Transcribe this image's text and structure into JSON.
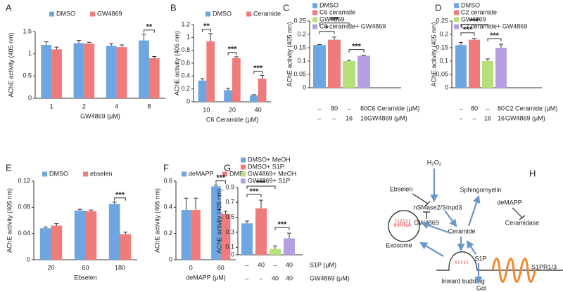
{
  "chart_data": [
    {
      "panel": "A",
      "type": "bar",
      "ylabel": "AChE activity (405 nm)",
      "xlabel": "GW4869 (μM)",
      "categories": [
        "1",
        "2",
        "4",
        "8"
      ],
      "series": [
        {
          "name": "DMSO",
          "color": "#6ea6e2",
          "values": [
            1.2,
            1.24,
            1.18,
            1.3
          ],
          "errors": [
            0.07,
            0.06,
            0.05,
            0.14
          ]
        },
        {
          "name": "GW4869",
          "color": "#f07b7b",
          "values": [
            1.1,
            1.23,
            1.15,
            0.9
          ],
          "errors": [
            0.05,
            0.03,
            0.05,
            0.04
          ]
        }
      ],
      "ylim": [
        0,
        1.5
      ],
      "yticks": [
        0,
        0.5,
        1,
        1.5
      ],
      "annotations": [
        "**"
      ]
    },
    {
      "panel": "B",
      "type": "bar",
      "ylabel": "AChE activity (405 nm)",
      "xlabel": "C6 Ceramide (μM)",
      "categories": [
        "10",
        "20",
        "40"
      ],
      "series": [
        {
          "name": "DMSO",
          "color": "#6ea6e2",
          "values": [
            0.33,
            0.18,
            0.1
          ],
          "errors": [
            0.03,
            0.03,
            0.01
          ]
        },
        {
          "name": "Ceramide",
          "color": "#f07b7b",
          "values": [
            0.94,
            0.68,
            0.36
          ],
          "errors": [
            0.12,
            0.02,
            0.05
          ]
        }
      ],
      "ylim": [
        0,
        1.2
      ],
      "yticks": [
        0,
        0.2,
        0.4,
        0.6,
        0.8,
        1,
        1.2
      ],
      "annotations": [
        "**",
        "***",
        "***"
      ]
    },
    {
      "panel": "C",
      "type": "bar_group",
      "ylabel": "AChE activity (405 nm)",
      "series": [
        {
          "name": "DMSO",
          "color": "#6ea6e2",
          "values": [
            0.16
          ],
          "errors": [
            0.002
          ]
        },
        {
          "name": "C6 ceramide",
          "color": "#f07b7b",
          "values": [
            0.18
          ],
          "errors": [
            0.01
          ]
        },
        {
          "name": "GW4869",
          "color": "#b8e07a",
          "values": [
            0.1
          ],
          "errors": [
            0.003
          ]
        },
        {
          "name": "C6 ceramide+ GW4869",
          "color": "#b7a0e2",
          "values": [
            0.12
          ],
          "errors": [
            0.002
          ]
        }
      ],
      "rows": [
        {
          "label": "C6 Ceramide (μM)",
          "values": [
            "–",
            "80",
            "–",
            "80"
          ]
        },
        {
          "label": "GW4869 (μM)",
          "values": [
            "–",
            "–",
            "16",
            "16"
          ]
        }
      ],
      "ylim": [
        0,
        0.25
      ],
      "yticks": [
        0,
        0.05,
        0.1,
        0.15,
        0.2,
        0.25
      ],
      "annotations": [
        "*",
        "***",
        "***"
      ]
    },
    {
      "panel": "D",
      "type": "bar_group",
      "ylabel": "AChE activity (405 nm)",
      "series": [
        {
          "name": "DMSO",
          "color": "#6ea6e2",
          "values": [
            0.16
          ],
          "errors": [
            0.01
          ]
        },
        {
          "name": "C2 ceramide",
          "color": "#f07b7b",
          "values": [
            0.18
          ],
          "errors": [
            0.005
          ]
        },
        {
          "name": "GW4869",
          "color": "#b8e07a",
          "values": [
            0.1
          ],
          "errors": [
            0.008
          ]
        },
        {
          "name": "C2 ceramide+ GW4869",
          "color": "#b7a0e2",
          "values": [
            0.15
          ],
          "errors": [
            0.013
          ]
        }
      ],
      "rows": [
        {
          "label": "C2 Ceramide (μM)",
          "values": [
            "–",
            "80",
            "–",
            "80"
          ]
        },
        {
          "label": "GW4869 (μM)",
          "values": [
            "–",
            "–",
            "16",
            "16"
          ]
        }
      ],
      "ylim": [
        0,
        0.25
      ],
      "yticks": [
        0,
        0.05,
        0.1,
        0.15,
        0.2,
        0.25
      ],
      "annotations": [
        "***",
        "***",
        "***"
      ]
    },
    {
      "panel": "E",
      "type": "bar",
      "ylabel": "AChE activity (405 nm)",
      "xlabel": "Ebselen",
      "categories": [
        "20",
        "60",
        "180"
      ],
      "series": [
        {
          "name": "DMSO",
          "color": "#6ea6e2",
          "values": [
            0.048,
            0.075,
            0.085
          ],
          "errors": [
            0.002,
            0.002,
            0.003
          ]
        },
        {
          "name": "ebselen",
          "color": "#f07b7b",
          "values": [
            0.052,
            0.074,
            0.039
          ],
          "errors": [
            0.003,
            0.002,
            0.003
          ]
        }
      ],
      "ylim": [
        0,
        0.12
      ],
      "yticks": [
        0,
        0.04,
        0.08,
        0.12
      ],
      "annotations": [
        "***"
      ]
    },
    {
      "panel": "F",
      "type": "bar",
      "ylabel": "AChE activity (405 nm)",
      "xlabel": "deMAPP  (μM)",
      "categories": [
        "0",
        "60"
      ],
      "series": [
        {
          "name": "deMAPP",
          "color": "#6ea6e2",
          "values": [
            0.38,
            0.56
          ],
          "errors": [
            0.09,
            0.01
          ]
        },
        {
          "name": "DMF",
          "color": "#f07b7b",
          "values": [
            0.38,
            0.35
          ],
          "errors": [
            0.09,
            0.02
          ]
        }
      ],
      "ylim": [
        0,
        0.6
      ],
      "yticks": [
        0,
        0.2,
        0.4,
        0.6
      ],
      "annotations": [
        "***"
      ]
    },
    {
      "panel": "G",
      "type": "bar_group",
      "ylabel": "AChE activity (405 nm)",
      "series": [
        {
          "name": "DMSO+ MeOH",
          "color": "#6ea6e2",
          "values": [
            0.42
          ],
          "errors": [
            0.03
          ]
        },
        {
          "name": "DMSO+ S1P",
          "color": "#f07b7b",
          "values": [
            0.62
          ],
          "errors": [
            0.11
          ]
        },
        {
          "name": "GW4869+ MeOH",
          "color": "#b8e07a",
          "values": [
            0.08
          ],
          "errors": [
            0.04
          ]
        },
        {
          "name": "GW4869+ S1P",
          "color": "#b7a0e2",
          "values": [
            0.22
          ],
          "errors": [
            0.07
          ]
        }
      ],
      "rows": [
        {
          "label": "S1P (μM)",
          "values": [
            "–",
            "40",
            "–",
            "40"
          ]
        },
        {
          "label": "GW4869 (μM)",
          "values": [
            "–",
            "–",
            "40",
            "40"
          ]
        }
      ],
      "ylim": [
        0,
        0.9
      ],
      "yticks": [
        0,
        0.1,
        0.3,
        0.5,
        0.7,
        0.9
      ],
      "annotations": [
        "***",
        "***",
        "***"
      ]
    }
  ],
  "diagram": {
    "panel": "H",
    "h2o2": "H₂O₂",
    "ebselen": "Ebselen",
    "sphingomyelin": "Sphingomyelin",
    "nsmase": "nSMase2/Smpd3",
    "demapp": "deMAPP",
    "gw4869": "GW4869",
    "ceramidase": "Ceramidase",
    "ceramide": "Ceramide",
    "mirna": "miRNA",
    "exosome": "Exosome",
    "s1p": "S1P",
    "budding": "Inward budding",
    "receptor": "S1PR1/3",
    "gai": "Gαi"
  }
}
